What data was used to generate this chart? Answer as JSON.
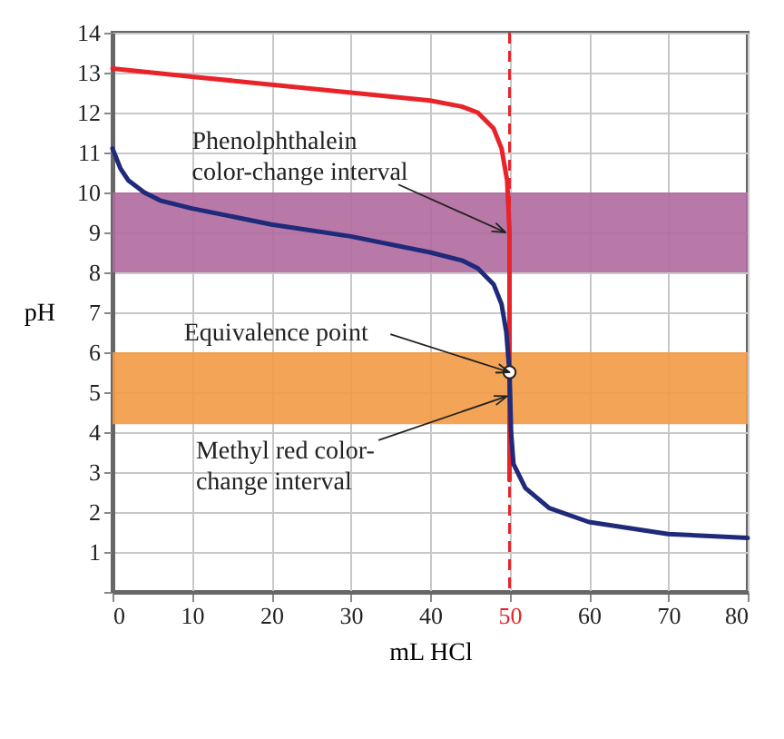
{
  "chart_data": {
    "type": "line",
    "xlabel": "mL HCl",
    "ylabel": "pH",
    "xlim": [
      0,
      80
    ],
    "xticks": [
      0,
      10,
      20,
      30,
      40,
      50,
      60,
      70,
      80
    ],
    "ylim": [
      0,
      14
    ],
    "yticks": [
      {
        "value": 0,
        "label": null
      },
      1,
      2,
      3,
      4,
      5,
      6,
      7,
      8,
      9,
      10,
      11,
      12,
      13,
      14
    ],
    "grid": true,
    "legend": false,
    "line_style": "solid",
    "marker": "none",
    "series": [
      {
        "color": "#e8232a",
        "x": [
          0,
          10,
          20,
          30,
          40,
          44,
          46,
          48,
          49,
          49.7,
          50,
          50
        ],
        "values": [
          13.1,
          12.9,
          12.7,
          12.5,
          12.3,
          12.15,
          12,
          11.6,
          11.1,
          10.3,
          9,
          2.8
        ]
      },
      {
        "color": "#1f2a7a",
        "x": [
          0,
          1,
          2,
          4,
          6,
          10,
          20,
          30,
          40,
          44,
          46,
          48,
          49,
          49.6,
          50,
          50.2,
          50.5,
          52,
          55,
          60,
          70,
          80
        ],
        "values": [
          11.1,
          10.6,
          10.3,
          10,
          9.8,
          9.6,
          9.2,
          8.9,
          8.5,
          8.3,
          8.1,
          7.7,
          7.2,
          6.5,
          5.5,
          4,
          3.2,
          2.6,
          2.1,
          1.75,
          1.45,
          1.35
        ]
      },
      {
        "type": "scatter",
        "marker": "circle",
        "color": "#ffffff",
        "x": [
          50
        ],
        "values": [
          5.5
        ]
      }
    ],
    "bands": [
      {
        "axis": "y",
        "from": 8,
        "to": 10,
        "color": "#b06a9e"
      },
      {
        "axis": "y",
        "from": 4.2,
        "to": 6,
        "color": "#f29a45"
      }
    ],
    "ref_lines": [
      {
        "axis": "x",
        "value": 50,
        "color": "#e8232a",
        "line_style": "dashed"
      }
    ],
    "annotations": [
      {
        "text": "Phenolphthalein\ncolor-change interval",
        "x": 49.5,
        "y": 9
      },
      {
        "text": "Equivalence point",
        "x": 50,
        "y": 5.5
      },
      {
        "text": "Methyl red color-\nchange interval",
        "x": 49.7,
        "y": 4.9
      }
    ]
  }
}
